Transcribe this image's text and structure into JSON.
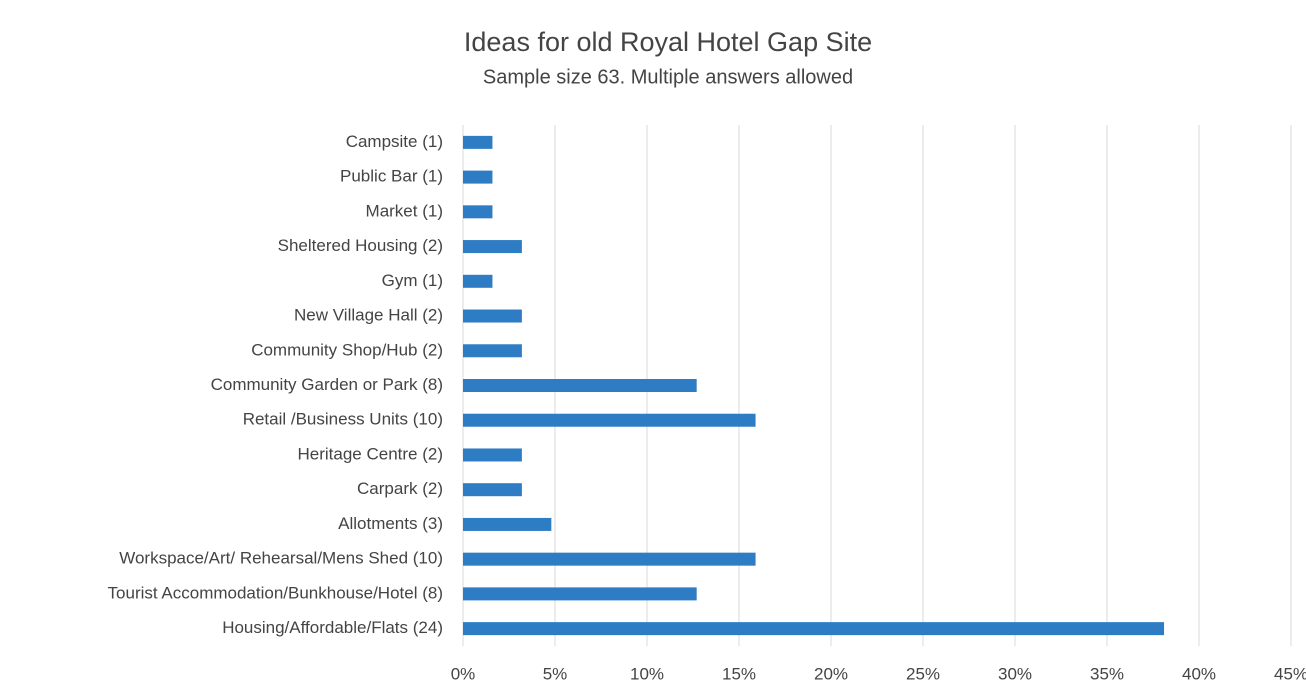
{
  "chart_data": {
    "type": "bar",
    "orientation": "horizontal",
    "title": "Ideas for old Royal Hotel Gap Site",
    "subtitle": "Sample size 63. Multiple answers allowed",
    "categories": [
      "Campsite (1)",
      "Public Bar (1)",
      "Market (1)",
      "Sheltered Housing (2)",
      "Gym (1)",
      "New Village Hall (2)",
      "Community Shop/Hub (2)",
      "Community Garden or Park (8)",
      "Retail /Business Units (10)",
      "Heritage Centre (2)",
      "Carpark (2)",
      "Allotments (3)",
      "Workspace/Art/ Rehearsal/Mens Shed (10)",
      "Tourist Accommodation/Bunkhouse/Hotel (8)",
      "Housing/Affordable/Flats (24)"
    ],
    "values": [
      1.6,
      1.6,
      1.6,
      3.2,
      1.6,
      3.2,
      3.2,
      12.7,
      15.9,
      3.2,
      3.2,
      4.8,
      15.9,
      12.7,
      38.1
    ],
    "color": "#2e7cc4",
    "xlim": [
      0,
      45
    ],
    "xticks": [
      {
        "value": 0,
        "label": "0%"
      },
      {
        "value": 5,
        "label": "5%"
      },
      {
        "value": 10,
        "label": "10%"
      },
      {
        "value": 15,
        "label": "15%"
      },
      {
        "value": 20,
        "label": "20%"
      },
      {
        "value": 25,
        "label": "25%"
      },
      {
        "value": 30,
        "label": "30%"
      },
      {
        "value": 35,
        "label": "35%"
      },
      {
        "value": 40,
        "label": "40%"
      },
      {
        "value": 45,
        "label": "45%"
      }
    ],
    "grid": true
  }
}
